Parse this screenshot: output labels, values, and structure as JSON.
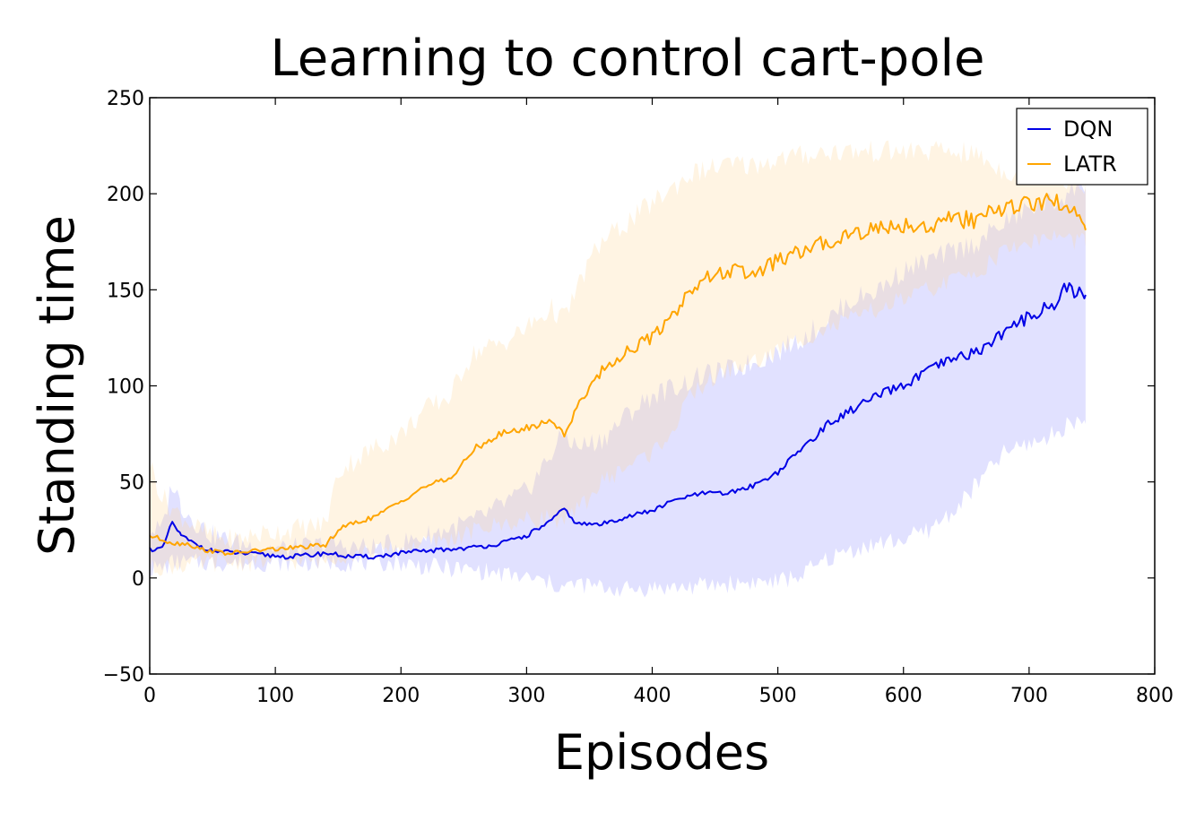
{
  "chart_data": {
    "type": "line",
    "title": "Learning to control cart-pole",
    "xlabel": "Episodes",
    "ylabel": "Standing time",
    "xlim": [
      0,
      800
    ],
    "ylim": [
      -50,
      250
    ],
    "xticks": [
      0,
      100,
      200,
      300,
      400,
      500,
      600,
      700,
      800
    ],
    "yticks": [
      -50,
      0,
      50,
      100,
      150,
      200,
      250
    ],
    "xtick_labels": [
      "0",
      "100",
      "200",
      "300",
      "400",
      "500",
      "600",
      "700",
      "800"
    ],
    "ytick_labels": [
      "−50",
      "0",
      "50",
      "100",
      "150",
      "200",
      "250"
    ],
    "grid": false,
    "legend": "top-right",
    "series": [
      {
        "name": "DQN",
        "color": "#0000e6",
        "band_color": "#6b6bff",
        "x": [
          0,
          10,
          18,
          25,
          35,
          50,
          70,
          90,
          110,
          130,
          140,
          160,
          180,
          200,
          220,
          240,
          260,
          280,
          300,
          320,
          330,
          340,
          360,
          380,
          400,
          420,
          440,
          460,
          480,
          500,
          520,
          540,
          560,
          580,
          600,
          620,
          640,
          660,
          680,
          700,
          710,
          720,
          730,
          740,
          745
        ],
        "mean": [
          15,
          15,
          29,
          22,
          18,
          14,
          13,
          12,
          11,
          12,
          13,
          11,
          11,
          13,
          14,
          15,
          16,
          18,
          22,
          30,
          36,
          28,
          28,
          32,
          35,
          41,
          44,
          44,
          48,
          55,
          68,
          80,
          88,
          95,
          100,
          108,
          114,
          118,
          128,
          136,
          140,
          142,
          152,
          148,
          145
        ],
        "lower": [
          5,
          5,
          8,
          8,
          8,
          8,
          8,
          8,
          8,
          8,
          8,
          8,
          8,
          8,
          6,
          5,
          4,
          2,
          0,
          -3,
          -5,
          -3,
          -5,
          -6,
          -5,
          -5,
          -4,
          -3,
          -2,
          -2,
          2,
          10,
          15,
          18,
          20,
          25,
          35,
          50,
          65,
          70,
          72,
          75,
          80,
          82,
          80
        ],
        "upper": [
          25,
          25,
          50,
          38,
          30,
          22,
          18,
          16,
          15,
          16,
          18,
          16,
          16,
          18,
          22,
          26,
          30,
          38,
          45,
          65,
          75,
          68,
          72,
          85,
          95,
          100,
          105,
          108,
          112,
          118,
          125,
          135,
          145,
          150,
          160,
          165,
          170,
          175,
          185,
          192,
          195,
          195,
          200,
          205,
          205
        ]
      },
      {
        "name": "LATR",
        "color": "#ffa500",
        "band_color": "#ffd699",
        "x": [
          0,
          10,
          20,
          30,
          40,
          50,
          60,
          70,
          80,
          100,
          120,
          140,
          150,
          160,
          180,
          200,
          220,
          240,
          250,
          260,
          280,
          300,
          320,
          330,
          340,
          350,
          360,
          380,
          390,
          400,
          420,
          430,
          440,
          460,
          480,
          500,
          520,
          540,
          560,
          580,
          600,
          620,
          640,
          660,
          670,
          680,
          700,
          720,
          740,
          745
        ],
        "mean": [
          22,
          20,
          18,
          18,
          15,
          14,
          13,
          13,
          14,
          15,
          16,
          17,
          25,
          28,
          32,
          40,
          48,
          52,
          60,
          68,
          75,
          78,
          82,
          75,
          88,
          100,
          108,
          118,
          122,
          125,
          140,
          150,
          155,
          160,
          158,
          165,
          170,
          175,
          180,
          182,
          184,
          183,
          187,
          186,
          190,
          193,
          195,
          196,
          190,
          185
        ],
        "lower": [
          5,
          6,
          6,
          7,
          7,
          8,
          8,
          8,
          8,
          9,
          9,
          9,
          12,
          12,
          14,
          15,
          18,
          20,
          22,
          25,
          28,
          30,
          32,
          28,
          35,
          42,
          50,
          58,
          62,
          65,
          80,
          95,
          100,
          108,
          112,
          118,
          125,
          130,
          135,
          140,
          145,
          150,
          155,
          160,
          165,
          170,
          175,
          178,
          175,
          175
        ],
        "upper": [
          60,
          42,
          35,
          30,
          25,
          22,
          20,
          20,
          22,
          24,
          26,
          28,
          55,
          60,
          68,
          75,
          88,
          95,
          110,
          118,
          122,
          130,
          140,
          135,
          150,
          165,
          175,
          185,
          190,
          195,
          205,
          210,
          212,
          215,
          215,
          218,
          220,
          222,
          222,
          222,
          222,
          222,
          222,
          220,
          215,
          212,
          210,
          210,
          205,
          205
        ]
      }
    ]
  }
}
